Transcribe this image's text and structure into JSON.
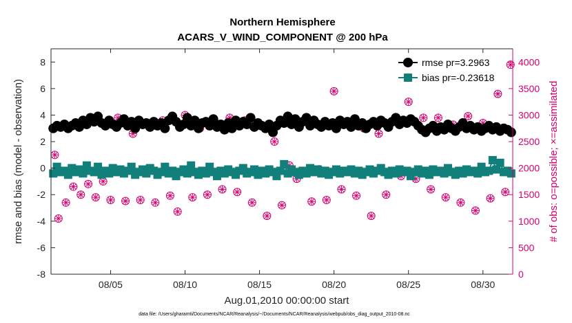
{
  "chart_data": {
    "type": "line",
    "title": "Northern Hemisphere",
    "subtitle": "ACARS_V_WIND_COMPONENT @ 200 hPa",
    "xlabel": "Aug.01,2010 00:00:00 start",
    "ylabel": "rmse and bias (model - observation)",
    "ylabel_right": "# of obs: o=possible; ×=assimilated",
    "footnote": "data file: /Users/gharamti/Documents/NCAR/Reanalysis/~/Documents/NCAR/Reanalysis/webpub/obs_diag_output_2010-08.nc",
    "xlim": [
      1,
      32
    ],
    "ylim": [
      -8,
      9
    ],
    "ylim_right": [
      0,
      4250
    ],
    "x_ticks": [
      5,
      10,
      15,
      20,
      25,
      30
    ],
    "x_tick_labels": [
      "08/05",
      "08/10",
      "08/15",
      "08/20",
      "08/25",
      "08/30"
    ],
    "y_ticks": [
      -8,
      -6,
      -4,
      -2,
      0,
      2,
      4,
      6,
      8
    ],
    "y_tick_labels": [
      "-8",
      "-6",
      "-4",
      "-2",
      "0",
      "2",
      "4",
      "6",
      "8"
    ],
    "y_ticks_right": [
      0,
      500,
      1000,
      1500,
      2000,
      2500,
      3000,
      3500,
      4000
    ],
    "y_tick_labels_right": [
      "0",
      "500",
      "1000",
      "1500",
      "2000",
      "2500",
      "3000",
      "3500",
      "4000"
    ],
    "legend_position": "top-right",
    "grid": false,
    "series": [
      {
        "name": "rmse pr=3.2963",
        "color": "#000000",
        "marker": "circle",
        "x": [
          1.15,
          1.4,
          1.65,
          1.9,
          2.15,
          2.4,
          2.65,
          2.9,
          3.15,
          3.4,
          3.65,
          3.9,
          4.15,
          4.4,
          4.65,
          4.9,
          5.15,
          5.4,
          5.65,
          5.9,
          6.15,
          6.4,
          6.65,
          6.9,
          7.15,
          7.4,
          7.65,
          7.9,
          8.15,
          8.4,
          8.65,
          8.9,
          9.15,
          9.4,
          9.65,
          9.9,
          10.15,
          10.4,
          10.65,
          10.9,
          11.15,
          11.4,
          11.65,
          11.9,
          12.15,
          12.4,
          12.65,
          12.9,
          13.15,
          13.4,
          13.65,
          13.9,
          14.15,
          14.4,
          14.65,
          14.9,
          15.15,
          15.4,
          15.65,
          15.9,
          16.15,
          16.4,
          16.65,
          16.9,
          17.15,
          17.4,
          17.65,
          17.9,
          18.15,
          18.4,
          18.65,
          18.9,
          19.15,
          19.4,
          19.65,
          19.9,
          20.15,
          20.4,
          20.65,
          20.9,
          21.15,
          21.4,
          21.65,
          21.9,
          22.15,
          22.4,
          22.65,
          22.9,
          23.15,
          23.4,
          23.65,
          23.9,
          24.15,
          24.4,
          24.65,
          24.9,
          25.15,
          25.4,
          25.65,
          25.9,
          26.15,
          26.4,
          26.65,
          26.9,
          27.15,
          27.4,
          27.65,
          27.9,
          28.15,
          28.4,
          28.65,
          28.9,
          29.15,
          29.4,
          29.65,
          29.9,
          30.15,
          30.4,
          30.65,
          30.9,
          31.15,
          31.4,
          31.65,
          31.9
        ],
        "values": [
          3.0,
          3.2,
          3.1,
          3.3,
          3.0,
          3.2,
          3.4,
          3.1,
          3.6,
          3.3,
          3.8,
          3.5,
          3.9,
          3.4,
          3.2,
          3.6,
          3.3,
          3.1,
          3.4,
          3.7,
          3.2,
          3.5,
          3.0,
          3.6,
          3.3,
          3.4,
          3.1,
          3.5,
          3.2,
          3.4,
          3.0,
          3.6,
          3.9,
          3.5,
          3.1,
          3.3,
          3.8,
          3.2,
          3.6,
          3.0,
          3.4,
          3.5,
          3.2,
          3.7,
          3.1,
          3.3,
          2.9,
          3.4,
          3.0,
          3.6,
          3.2,
          3.5,
          3.3,
          3.8,
          3.1,
          3.4,
          3.2,
          3.0,
          3.3,
          2.7,
          3.2,
          3.6,
          3.4,
          3.9,
          3.3,
          3.7,
          3.1,
          3.5,
          3.8,
          3.2,
          3.6,
          3.3,
          3.1,
          3.5,
          3.2,
          3.4,
          3.0,
          3.6,
          3.3,
          3.5,
          3.1,
          3.7,
          3.2,
          3.4,
          3.0,
          3.3,
          3.5,
          3.2,
          3.6,
          3.4,
          3.1,
          3.5,
          3.8,
          3.3,
          3.6,
          3.4,
          3.7,
          3.5,
          3.2,
          2.9,
          2.7,
          3.0,
          3.2,
          2.8,
          3.1,
          2.9,
          3.3,
          3.0,
          2.8,
          3.1,
          3.4,
          3.0,
          3.2,
          2.9,
          3.1,
          2.8,
          3.0,
          3.2,
          2.9,
          3.1,
          2.8,
          3.0,
          2.9,
          2.7
        ]
      },
      {
        "name": "bias pr=-0.23618",
        "color": "#12807a",
        "marker": "square",
        "x": [
          1.15,
          1.4,
          1.65,
          1.9,
          2.15,
          2.4,
          2.65,
          2.9,
          3.15,
          3.4,
          3.65,
          3.9,
          4.15,
          4.4,
          4.65,
          4.9,
          5.15,
          5.4,
          5.65,
          5.9,
          6.15,
          6.4,
          6.65,
          6.9,
          7.15,
          7.4,
          7.65,
          7.9,
          8.15,
          8.4,
          8.65,
          8.9,
          9.15,
          9.4,
          9.65,
          9.9,
          10.15,
          10.4,
          10.65,
          10.9,
          11.15,
          11.4,
          11.65,
          11.9,
          12.15,
          12.4,
          12.65,
          12.9,
          13.15,
          13.4,
          13.65,
          13.9,
          14.15,
          14.4,
          14.65,
          14.9,
          15.15,
          15.4,
          15.65,
          15.9,
          16.15,
          16.4,
          16.65,
          16.9,
          17.15,
          17.4,
          17.65,
          17.9,
          18.15,
          18.4,
          18.65,
          18.9,
          19.15,
          19.4,
          19.65,
          19.9,
          20.15,
          20.4,
          20.65,
          20.9,
          21.15,
          21.4,
          21.65,
          21.9,
          22.15,
          22.4,
          22.65,
          22.9,
          23.15,
          23.4,
          23.65,
          23.9,
          24.15,
          24.4,
          24.65,
          24.9,
          25.15,
          25.4,
          25.65,
          25.9,
          26.15,
          26.4,
          26.65,
          26.9,
          27.15,
          27.4,
          27.65,
          27.9,
          28.15,
          28.4,
          28.65,
          28.9,
          29.15,
          29.4,
          29.65,
          29.9,
          30.15,
          30.4,
          30.65,
          30.9,
          31.15,
          31.4,
          31.65,
          31.9
        ],
        "values": [
          -0.4,
          0.1,
          -0.3,
          -0.2,
          -0.5,
          0.0,
          -0.3,
          -0.1,
          -0.4,
          0.2,
          -0.2,
          -0.3,
          0.1,
          -0.5,
          -0.2,
          -0.4,
          0.0,
          -0.3,
          -0.1,
          -0.4,
          -0.2,
          0.1,
          -0.5,
          -0.3,
          -0.1,
          -0.4,
          0.0,
          -0.2,
          -0.5,
          -0.3,
          0.1,
          -0.4,
          -0.2,
          -0.6,
          -0.3,
          -0.1,
          -0.4,
          0.2,
          -0.3,
          -0.5,
          -0.2,
          -0.4,
          0.1,
          -0.3,
          -0.6,
          -0.2,
          -0.4,
          -0.1,
          -0.3,
          -0.5,
          -0.2,
          0.0,
          -0.4,
          -0.3,
          -0.1,
          -0.5,
          -0.2,
          -0.4,
          -0.1,
          -0.3,
          -0.6,
          -0.2,
          0.3,
          -0.4,
          -0.1,
          -0.3,
          -0.5,
          -0.2,
          -0.4,
          0.0,
          -0.3,
          -0.1,
          -0.4,
          -0.2,
          -0.5,
          -0.3,
          -0.1,
          -0.4,
          -0.2,
          -0.3,
          -0.1,
          -0.4,
          -0.2,
          -0.5,
          -0.3,
          -0.1,
          -0.4,
          -0.2,
          0.0,
          -0.3,
          -0.5,
          -0.2,
          -0.4,
          -0.1,
          -0.3,
          -0.2,
          -0.6,
          -0.3,
          -0.1,
          -0.4,
          -0.2,
          -0.5,
          -0.1,
          -0.3,
          -0.2,
          -0.4,
          0.0,
          -0.3,
          -0.5,
          -0.2,
          -0.4,
          -0.1,
          -0.3,
          -0.2,
          -0.4,
          0.1,
          -0.3,
          -0.2,
          0.6,
          -0.1,
          0.4,
          -0.3,
          -0.2,
          -0.4
        ]
      },
      {
        "name": "",
        "axis": "right",
        "color": "#d6006e",
        "marker": "circle-open",
        "x": [
          1.25,
          1.5,
          2.0,
          2.5,
          3.0,
          3.5,
          4.0,
          4.5,
          5.0,
          5.5,
          6.0,
          6.5,
          7.0,
          7.5,
          8.0,
          8.5,
          9.0,
          9.5,
          10.0,
          10.5,
          11.0,
          11.5,
          12.0,
          12.5,
          13.0,
          13.5,
          14.0,
          14.5,
          15.0,
          15.5,
          16.0,
          16.5,
          17.0,
          17.5,
          18.0,
          18.5,
          19.0,
          19.5,
          20.0,
          20.5,
          21.0,
          21.5,
          22.0,
          22.5,
          23.0,
          23.5,
          24.0,
          24.5,
          25.0,
          25.5,
          26.0,
          26.5,
          27.0,
          27.5,
          28.0,
          28.5,
          29.0,
          29.5,
          30.0,
          30.5,
          31.0,
          31.5,
          31.85
        ],
        "values": [
          2250,
          1050,
          1350,
          1650,
          1500,
          1700,
          1450,
          1750,
          1400,
          2950,
          1380,
          2650,
          1400,
          2850,
          1350,
          2900,
          1480,
          1180,
          3000,
          1450,
          2750,
          1500,
          2870,
          1600,
          2950,
          1550,
          2900,
          1350,
          2800,
          1100,
          2500,
          1300,
          2050,
          1800,
          2900,
          1370,
          1980,
          1400,
          3450,
          1600,
          2880,
          1480,
          2750,
          1100,
          2650,
          1500,
          2900,
          1850,
          3250,
          1800,
          2950,
          1600,
          2950,
          1450,
          2820,
          1350,
          2980,
          1200,
          2850,
          1430,
          3400,
          1550,
          3950
        ]
      },
      {
        "name": "",
        "axis": "right",
        "color": "#d6006e",
        "marker": "asterisk",
        "x": [
          1.25,
          1.5,
          2.0,
          2.5,
          3.0,
          3.5,
          4.0,
          4.5,
          5.0,
          5.5,
          6.0,
          6.5,
          7.0,
          7.5,
          8.0,
          8.5,
          9.0,
          9.5,
          10.0,
          10.5,
          11.0,
          11.5,
          12.0,
          12.5,
          13.0,
          13.5,
          14.0,
          14.5,
          15.0,
          15.5,
          16.0,
          16.5,
          17.0,
          17.5,
          18.0,
          18.5,
          19.0,
          19.5,
          20.0,
          20.5,
          21.0,
          21.5,
          22.0,
          22.5,
          23.0,
          23.5,
          24.0,
          24.5,
          25.0,
          25.5,
          26.0,
          26.5,
          27.0,
          27.5,
          28.0,
          28.5,
          29.0,
          29.5,
          30.0,
          30.5,
          31.0,
          31.5,
          31.85
        ],
        "values": [
          2250,
          1050,
          1350,
          1650,
          1500,
          1700,
          1450,
          1750,
          1400,
          2950,
          1380,
          2650,
          1400,
          2850,
          1350,
          2900,
          1480,
          1180,
          3000,
          1450,
          2750,
          1500,
          2870,
          1600,
          2950,
          1550,
          2900,
          1350,
          2800,
          1100,
          2500,
          1300,
          2050,
          1800,
          2900,
          1370,
          1980,
          1400,
          3450,
          1600,
          2880,
          1480,
          2750,
          1100,
          2650,
          1500,
          2900,
          1850,
          3250,
          1800,
          2950,
          1600,
          2950,
          1450,
          2820,
          1350,
          2980,
          1200,
          2850,
          1430,
          3400,
          1550,
          3950
        ]
      }
    ]
  }
}
